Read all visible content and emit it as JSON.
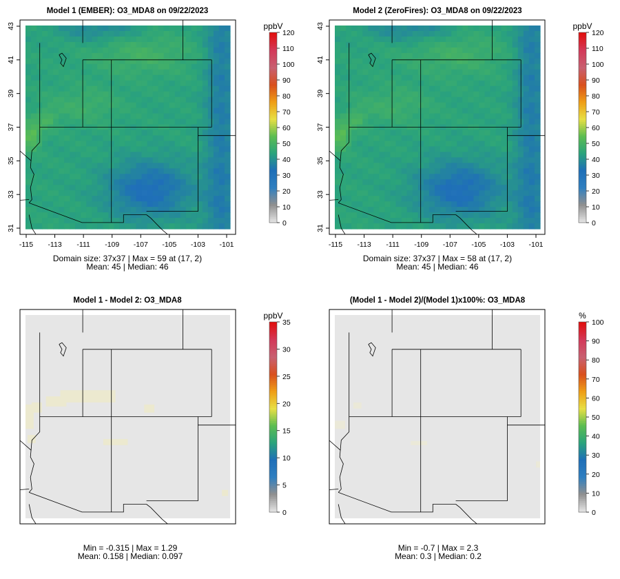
{
  "chart_data": [
    {
      "type": "heatmap",
      "title": "Model 1 (EMBER): O3_MDA8 on 09/22/2023",
      "xlim": [
        -115,
        -101
      ],
      "ylim": [
        31,
        43
      ],
      "xticks": [
        "-115",
        "-113",
        "-111",
        "-109",
        "-107",
        "-105",
        "-103",
        "-101"
      ],
      "yticks": [
        "31",
        "33",
        "35",
        "37",
        "39",
        "41",
        "43"
      ],
      "colorbar": {
        "unit": "ppbV",
        "min": 0,
        "max": 120,
        "ticks": [
          "0",
          "10",
          "20",
          "30",
          "40",
          "50",
          "60",
          "70",
          "80",
          "90",
          "100",
          "110",
          "120"
        ]
      },
      "field": "concentration",
      "grid_size": [
        37,
        37
      ],
      "min": null,
      "max": 59,
      "max_cell": [
        17,
        2
      ],
      "mean": 45,
      "median": 46,
      "stat_line1": "Domain size: 37x37 | Max = 59 at (17, 2)",
      "stat_line2": "Mean: 45 |  Median: 46"
    },
    {
      "type": "heatmap",
      "title": "Model 2 (ZeroFires): O3_MDA8 on 09/22/2023",
      "xlim": [
        -115,
        -101
      ],
      "ylim": [
        31,
        43
      ],
      "xticks": [
        "-115",
        "-113",
        "-111",
        "-109",
        "-107",
        "-105",
        "-103",
        "-101"
      ],
      "yticks": [
        "31",
        "33",
        "35",
        "37",
        "39",
        "41",
        "43"
      ],
      "colorbar": {
        "unit": "ppbV",
        "min": 0,
        "max": 120,
        "ticks": [
          "0",
          "10",
          "20",
          "30",
          "40",
          "50",
          "60",
          "70",
          "80",
          "90",
          "100",
          "110",
          "120"
        ]
      },
      "field": "concentration",
      "grid_size": [
        37,
        37
      ],
      "min": null,
      "max": 58,
      "max_cell": [
        17,
        2
      ],
      "mean": 45,
      "median": 46,
      "stat_line1": "Domain size: 37x37 | Max = 58 at (17, 2)",
      "stat_line2": "Mean: 45 |  Median: 46"
    },
    {
      "type": "heatmap",
      "title": "Model 1 - Model 2: O3_MDA8",
      "xlim": [
        -115,
        -101
      ],
      "ylim": [
        31,
        43
      ],
      "xticks": [],
      "yticks": [],
      "colorbar": {
        "unit": "ppbV",
        "min": 0,
        "max": 35,
        "ticks": [
          "0",
          "5",
          "10",
          "15",
          "20",
          "25",
          "30",
          "35"
        ]
      },
      "field": "difference",
      "min": -0.315,
      "max": 1.29,
      "mean": 0.158,
      "median": 0.097,
      "stat_line1": "Min = -0.315 | Max = 1.29",
      "stat_line2": "Mean: 0.158 |  Median: 0.097"
    },
    {
      "type": "heatmap",
      "title": "(Model 1 - Model 2)/(Model 1)x100%: O3_MDA8",
      "xlim": [
        -115,
        -101
      ],
      "ylim": [
        31,
        43
      ],
      "xticks": [],
      "yticks": [],
      "colorbar": {
        "unit": "%",
        "min": 0,
        "max": 100,
        "ticks": [
          "0",
          "10",
          "20",
          "30",
          "40",
          "50",
          "60",
          "70",
          "80",
          "90",
          "100"
        ]
      },
      "field": "pctdiff",
      "min": -0.7,
      "max": 2.3,
      "mean": 0.3,
      "median": 0.2,
      "stat_line1": "Min = -0.7 | Max = 2.3",
      "stat_line2": "Mean: 0.3 |  Median: 0.2"
    }
  ],
  "colors": {
    "colorbar_stops": [
      "#e3e3e3",
      "#909090",
      "#2f7fc0",
      "#1f6fb8",
      "#2aa37c",
      "#5cbd52",
      "#e7df44",
      "#ef9e16",
      "#d9501e",
      "#c86070",
      "#d33a5a",
      "#e01010"
    ],
    "panel_fill": "#e6e6e6",
    "axis": "#000000"
  }
}
